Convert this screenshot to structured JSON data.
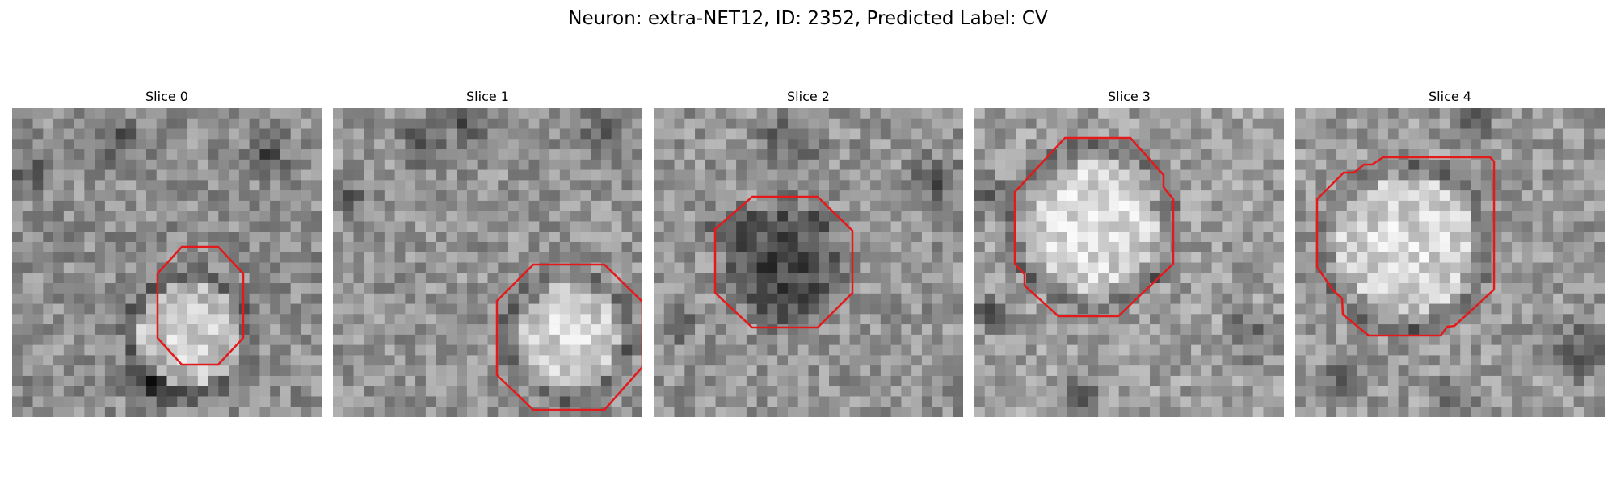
{
  "figure": {
    "title": "Neuron: extra-NET12, ID: 2352, Predicted Label: CV"
  },
  "panels": [
    {
      "title": "Slice 0",
      "contour_color": "#e31a1c"
    },
    {
      "title": "Slice 1",
      "contour_color": "#e31a1c"
    },
    {
      "title": "Slice 2",
      "contour_color": "#e31a1c"
    },
    {
      "title": "Slice 3",
      "contour_color": "#e31a1c"
    },
    {
      "title": "Slice 4",
      "contour_color": "#e31a1c"
    }
  ]
}
